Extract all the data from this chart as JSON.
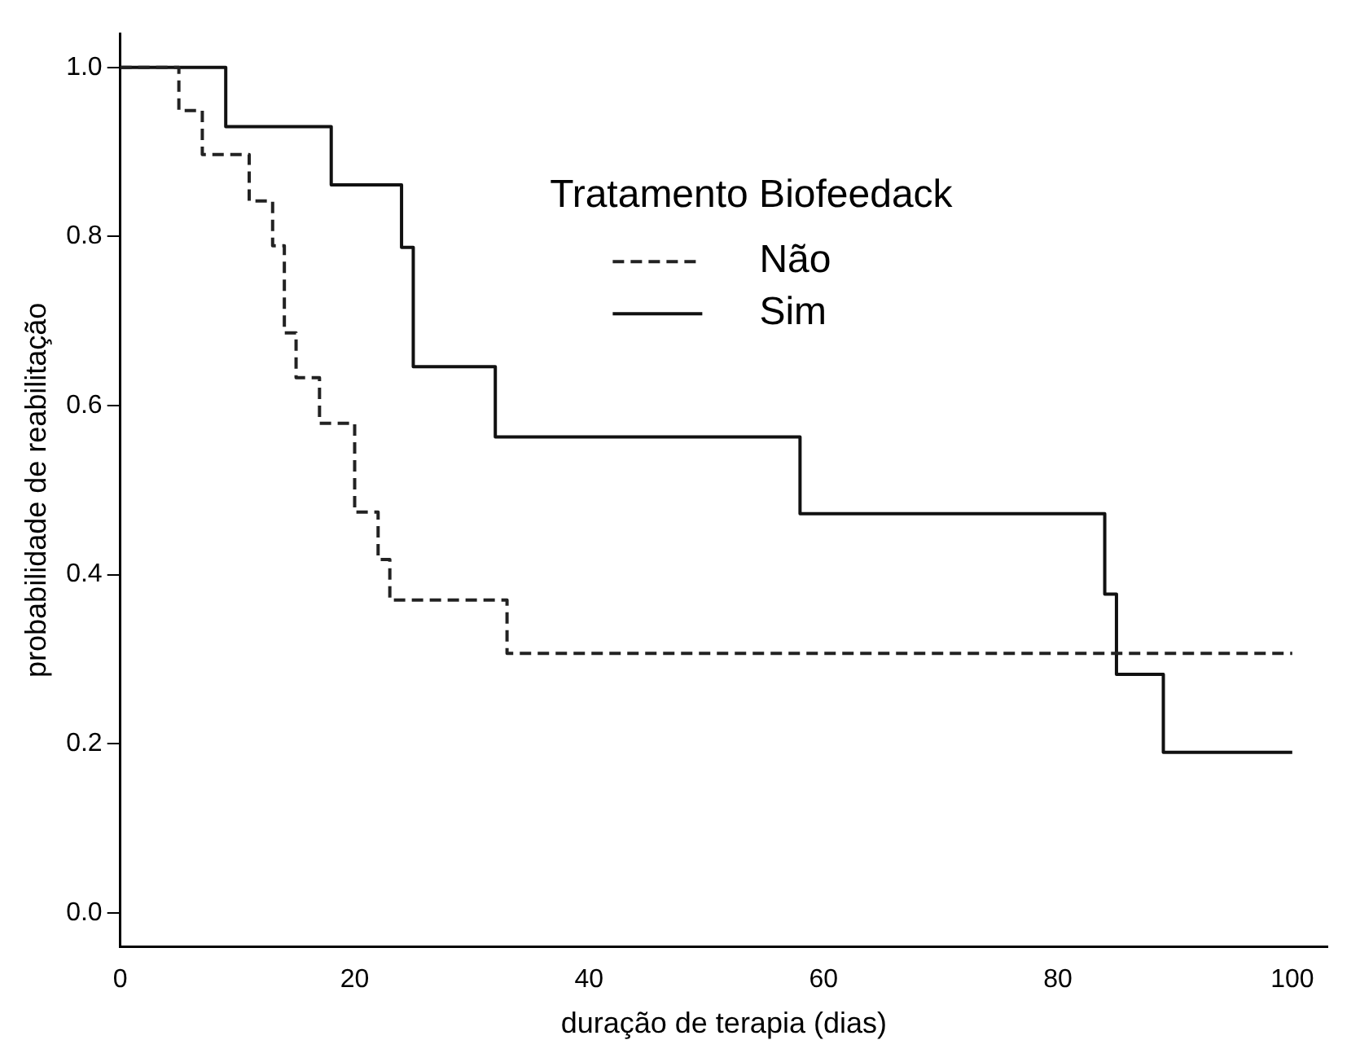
{
  "chart_data": {
    "type": "step",
    "xlabel": "duração de terapia (dias)",
    "ylabel": "probabilidade de reabilitação",
    "legend_title": "Tratamento Biofeedack",
    "legend": "top right",
    "grid": false,
    "marker": "none",
    "xlim": [
      0,
      103
    ],
    "xticks": [
      0,
      20,
      40,
      60,
      80,
      100
    ],
    "ylim": [
      -0.04,
      1.04
    ],
    "yticks": [
      {
        "value": 0,
        "label": "0.0"
      },
      0.2,
      0.4,
      0.6,
      0.8,
      {
        "value": 1,
        "label": "1.0"
      }
    ],
    "series": [
      {
        "name": "Não",
        "color": "#222222",
        "line_style": "dashed",
        "x": [
          0,
          5,
          7,
          11,
          13,
          14,
          15,
          17,
          20,
          22,
          23,
          33,
          100
        ],
        "values": [
          1.0,
          0.949,
          0.897,
          0.842,
          0.789,
          0.686,
          0.633,
          0.579,
          0.474,
          0.418,
          0.37,
          0.307,
          0.307
        ]
      },
      {
        "name": "Sim",
        "color": "#111111",
        "line_style": "solid",
        "x": [
          0,
          9,
          18,
          24,
          25,
          32,
          58,
          84,
          85,
          89,
          100
        ],
        "values": [
          1.0,
          0.93,
          0.861,
          0.787,
          0.646,
          0.563,
          0.472,
          0.377,
          0.282,
          0.19,
          0.19
        ]
      }
    ]
  }
}
